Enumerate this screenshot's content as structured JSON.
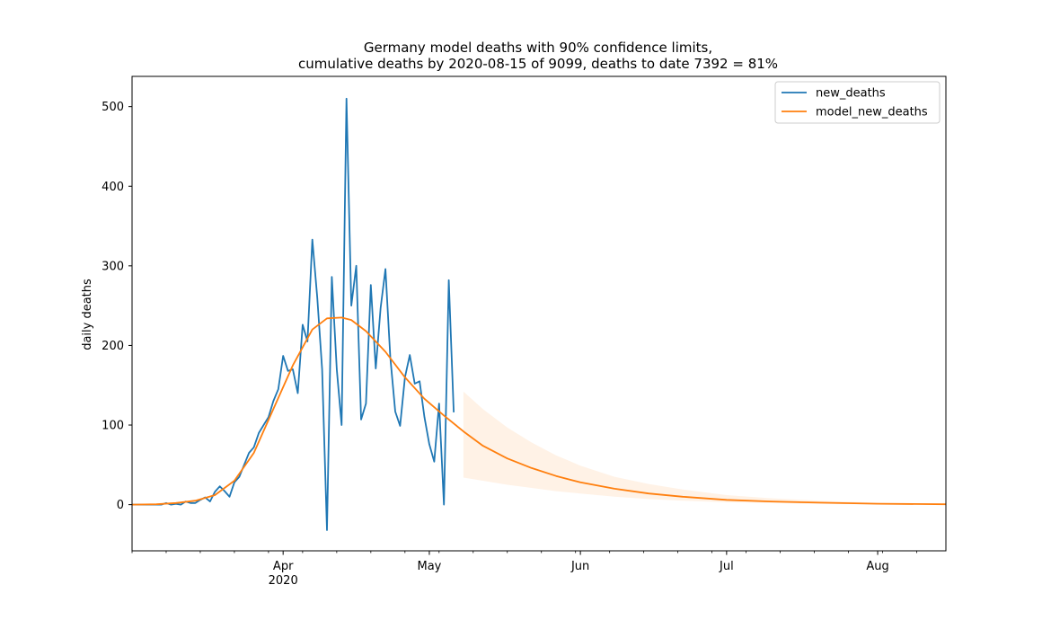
{
  "chart_data": {
    "type": "line",
    "title": "Germany model deaths with 90% confidence limits,",
    "subtitle": "cumulative deaths by 2020-08-15 of 9099, deaths to date 7392 = 81%",
    "xlabel": "",
    "ylabel": "daily deaths",
    "xlim": [
      "2020-03-01",
      "2020-08-15"
    ],
    "ylim": [
      -58,
      538
    ],
    "y_ticks": [
      0,
      100,
      200,
      300,
      400,
      500
    ],
    "x_ticks": [
      {
        "date": "2020-04-01",
        "label": "Apr",
        "sublabel": "2020"
      },
      {
        "date": "2020-05-01",
        "label": "May",
        "sublabel": ""
      },
      {
        "date": "2020-06-01",
        "label": "Jun",
        "sublabel": ""
      },
      {
        "date": "2020-07-01",
        "label": "Jul",
        "sublabel": ""
      },
      {
        "date": "2020-08-01",
        "label": "Aug",
        "sublabel": ""
      }
    ],
    "grid": false,
    "legend_position": "top-right",
    "series": [
      {
        "name": "new_deaths",
        "color": "#1f77b4",
        "x": [
          "2020-03-01",
          "2020-03-02",
          "2020-03-03",
          "2020-03-04",
          "2020-03-05",
          "2020-03-06",
          "2020-03-07",
          "2020-03-08",
          "2020-03-09",
          "2020-03-10",
          "2020-03-11",
          "2020-03-12",
          "2020-03-13",
          "2020-03-14",
          "2020-03-15",
          "2020-03-16",
          "2020-03-17",
          "2020-03-18",
          "2020-03-19",
          "2020-03-20",
          "2020-03-21",
          "2020-03-22",
          "2020-03-23",
          "2020-03-24",
          "2020-03-25",
          "2020-03-26",
          "2020-03-27",
          "2020-03-28",
          "2020-03-29",
          "2020-03-30",
          "2020-03-31",
          "2020-04-01",
          "2020-04-02",
          "2020-04-03",
          "2020-04-04",
          "2020-04-05",
          "2020-04-06",
          "2020-04-07",
          "2020-04-08",
          "2020-04-09",
          "2020-04-10",
          "2020-04-11",
          "2020-04-12",
          "2020-04-13",
          "2020-04-14",
          "2020-04-15",
          "2020-04-16",
          "2020-04-17",
          "2020-04-18",
          "2020-04-19",
          "2020-04-20",
          "2020-04-21",
          "2020-04-22",
          "2020-04-23",
          "2020-04-24",
          "2020-04-25",
          "2020-04-26",
          "2020-04-27",
          "2020-04-28",
          "2020-04-29",
          "2020-04-30",
          "2020-05-01",
          "2020-05-02",
          "2020-05-03",
          "2020-05-04",
          "2020-05-05",
          "2020-05-06",
          "2020-05-07"
        ],
        "y": [
          0,
          0,
          0,
          0,
          0,
          0,
          0,
          2,
          0,
          1,
          0,
          4,
          2,
          2,
          6,
          9,
          4,
          16,
          23,
          17,
          10,
          28,
          35,
          50,
          65,
          72,
          90,
          100,
          110,
          130,
          145,
          187,
          168,
          170,
          140,
          226,
          205,
          333,
          260,
          170,
          -32,
          286,
          170,
          100,
          510,
          250,
          300,
          107,
          127,
          276,
          171,
          247,
          296,
          185,
          117,
          99,
          160,
          188,
          152,
          155,
          110,
          76,
          54,
          127,
          0,
          282,
          116,
          null
        ]
      },
      {
        "name": "model_new_deaths",
        "color": "#ff7f0e",
        "x": [
          "2020-03-01",
          "2020-03-06",
          "2020-03-10",
          "2020-03-14",
          "2020-03-18",
          "2020-03-22",
          "2020-03-26",
          "2020-03-30",
          "2020-04-03",
          "2020-04-07",
          "2020-04-10",
          "2020-04-13",
          "2020-04-15",
          "2020-04-18",
          "2020-04-22",
          "2020-04-26",
          "2020-04-30",
          "2020-05-04",
          "2020-05-08",
          "2020-05-12",
          "2020-05-17",
          "2020-05-22",
          "2020-05-27",
          "2020-06-01",
          "2020-06-08",
          "2020-06-15",
          "2020-06-22",
          "2020-07-01",
          "2020-07-10",
          "2020-07-20",
          "2020-08-01",
          "2020-08-15"
        ],
        "y": [
          0,
          0.5,
          2,
          5,
          12,
          30,
          65,
          120,
          175,
          220,
          234,
          235,
          232,
          218,
          192,
          160,
          133,
          112,
          92,
          74,
          58,
          46,
          36,
          28,
          20,
          14,
          10,
          6,
          4,
          2.5,
          1.2,
          0.5
        ]
      }
    ],
    "confidence_band": {
      "name": "90% confidence limits",
      "color": "#ff7f0e",
      "x": [
        "2020-05-08",
        "2020-05-12",
        "2020-05-17",
        "2020-05-22",
        "2020-05-27",
        "2020-06-01",
        "2020-06-08",
        "2020-06-15",
        "2020-06-22",
        "2020-07-01",
        "2020-07-10",
        "2020-07-20",
        "2020-08-01",
        "2020-08-15"
      ],
      "lower": [
        34,
        30,
        25,
        21,
        17,
        14,
        10,
        7,
        5,
        3,
        2,
        1,
        0.5,
        0
      ],
      "upper": [
        142,
        120,
        97,
        78,
        62,
        49,
        35,
        26,
        19,
        12,
        8,
        5,
        2.5,
        1
      ]
    }
  }
}
